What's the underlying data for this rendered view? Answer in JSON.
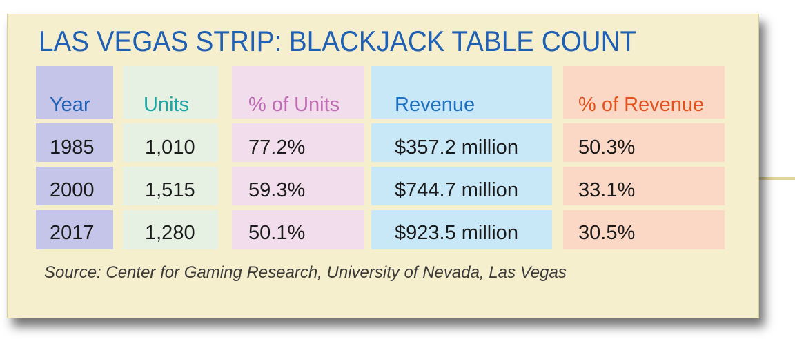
{
  "chart_data": {
    "type": "table",
    "title": "LAS VEGAS STRIP: BLACKJACK TABLE COUNT",
    "columns": [
      "Year",
      "Units",
      "% of Units",
      "Revenue",
      "% of Revenue"
    ],
    "rows": [
      [
        "1985",
        "1,010",
        "77.2%",
        "$357.2 million",
        "50.3%"
      ],
      [
        "2000",
        "1,515",
        "59.3%",
        "$744.7 million",
        "33.1%"
      ],
      [
        "2017",
        "1,280",
        "50.1%",
        "$923.5 million",
        "30.5%"
      ]
    ],
    "source": "Source: Center for Gaming Research, University of Nevada, Las Vegas",
    "colors": {
      "title": "#1f5fb4",
      "year": "#c4c5e8",
      "units": "#e6f1e4",
      "pct_units": "#f1ddec",
      "revenue": "#c8e8f8",
      "pct_revenue": "#fad8c5",
      "card": "#f6efcd"
    }
  }
}
